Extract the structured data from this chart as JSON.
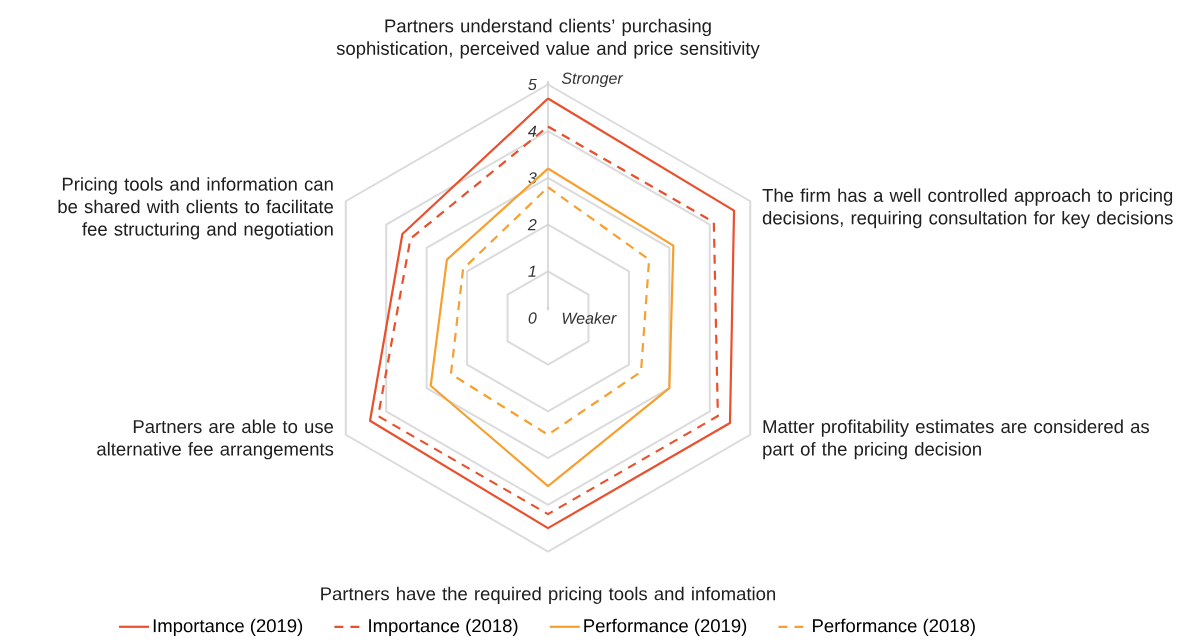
{
  "chart_data": {
    "type": "radar",
    "categories": [
      "Partners understand clients’ purchasing sophistication, perceived value and price sensitivity",
      "The firm has a well controlled approach to pricing decisions, requiring consultation for key decisions",
      "Matter profitability estimates are considered as part of the pricing decision",
      "Partners have the required pricing tools and infomation",
      "Partners are able to use alternative fee arrangements",
      "Pricing tools and information can be shared with clients to facilitate fee structuring and negotiation"
    ],
    "series": [
      {
        "name": "Importance (2019)",
        "color": "#e8502e",
        "line_style": "solid",
        "values": [
          4.7,
          4.6,
          4.5,
          4.5,
          4.4,
          3.6
        ]
      },
      {
        "name": "Importance (2018)",
        "color": "#e8502e",
        "line_style": "dashed",
        "values": [
          4.1,
          4.1,
          4.2,
          4.2,
          4.2,
          3.4
        ]
      },
      {
        "name": "Performance (2019)",
        "color": "#f7a030",
        "line_style": "solid",
        "values": [
          3.2,
          3.1,
          3.0,
          3.6,
          2.9,
          2.5
        ]
      },
      {
        "name": "Performance (2018)",
        "color": "#f7a030",
        "line_style": "dashed",
        "values": [
          2.8,
          2.5,
          2.3,
          2.5,
          2.4,
          2.1
        ]
      }
    ],
    "ylim": [
      0,
      5
    ],
    "yticks": [
      {
        "value": 0,
        "label": "0"
      },
      {
        "value": 1,
        "label": "1"
      },
      {
        "value": 2,
        "label": "2"
      },
      {
        "value": 3,
        "label": "3"
      },
      {
        "value": 4,
        "label": "4"
      },
      {
        "value": 5,
        "label": "5"
      }
    ],
    "annotations": [
      "Stronger",
      "Weaker"
    ],
    "grid": true,
    "legend": "bottom",
    "marker": "none"
  }
}
